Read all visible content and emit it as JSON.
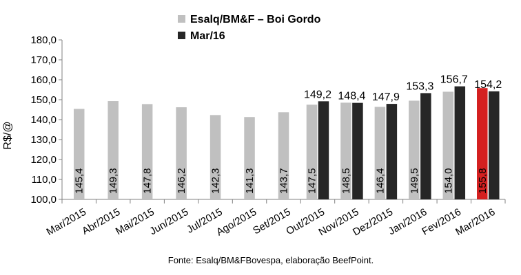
{
  "chart_data": {
    "type": "bar",
    "title": "",
    "ylabel": "R$/@",
    "xlabel": "",
    "ylim": [
      100,
      180
    ],
    "yticks": [
      "100,0",
      "110,0",
      "120,0",
      "130,0",
      "140,0",
      "150,0",
      "160,0",
      "170,0",
      "180,0"
    ],
    "categories": [
      "Mar/2015",
      "Abr/2015",
      "Mai/2015",
      "Jun/2015",
      "Jul/2015",
      "Ago/2015",
      "Set/2015",
      "Out/2015",
      "Nov/2015",
      "Dez/2015",
      "Jan/2016",
      "Fev/2016",
      "Mar/2016"
    ],
    "series": [
      {
        "name": "Esalq/BM&F – Boi Gordo",
        "color": "#c0c0c0",
        "highlight": {
          "index": 12,
          "color": "#d42020"
        },
        "values": [
          145.4,
          149.3,
          147.8,
          146.2,
          142.3,
          141.3,
          143.7,
          147.5,
          148.5,
          146.4,
          149.5,
          154.0,
          155.8
        ],
        "labels": [
          "145,4",
          "149,3",
          "147,8",
          "146,2",
          "142,3",
          "141,3",
          "143,7",
          "147,5",
          "148,5",
          "146,4",
          "149,5",
          "154,0",
          "155,8"
        ]
      },
      {
        "name": "Mar/16",
        "color": "#262626",
        "values": [
          null,
          null,
          null,
          null,
          null,
          null,
          null,
          149.2,
          148.4,
          147.9,
          153.3,
          156.7,
          154.2
        ],
        "labels": [
          null,
          null,
          null,
          null,
          null,
          null,
          null,
          "149,2",
          "148,4",
          "147,9",
          "153,3",
          "156,7",
          "154,2"
        ]
      }
    ],
    "legend": "top-center",
    "grid": false,
    "source": "Fonte: Esalq/BM&FBovespa, elaboração BeefPoint."
  }
}
